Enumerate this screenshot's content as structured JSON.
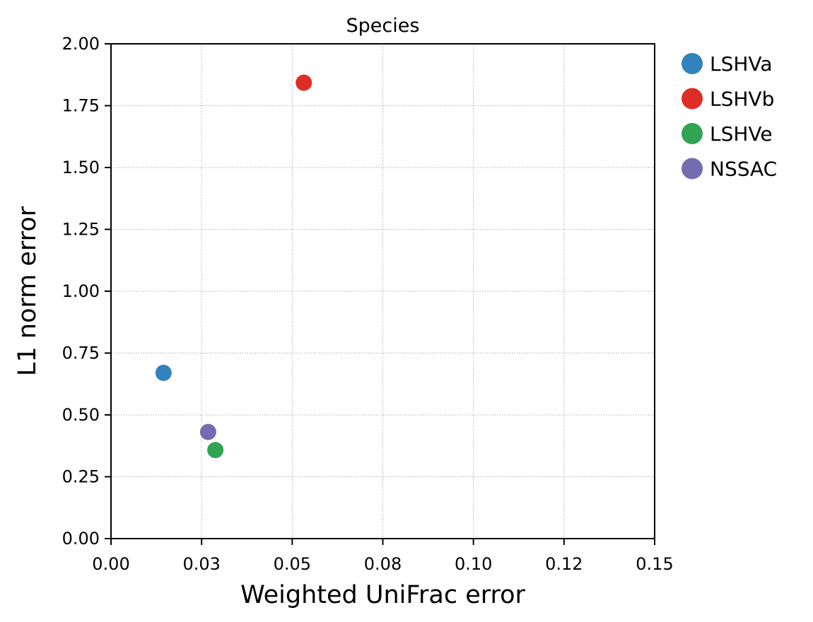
{
  "chart_data": {
    "type": "scatter",
    "title": "Species",
    "xlabel": "Weighted UniFrac error",
    "ylabel": "L1 norm error",
    "xlim": [
      0,
      0.15
    ],
    "ylim": [
      0,
      2
    ],
    "xticks": [
      0,
      0.025,
      0.05,
      0.075,
      0.1,
      0.125,
      0.15
    ],
    "xtick_labels": [
      "0.00",
      "0.03",
      "0.05",
      "0.08",
      "0.10",
      "0.12",
      "0.15"
    ],
    "yticks": [
      0,
      0.25,
      0.5,
      0.75,
      1.0,
      1.25,
      1.5,
      1.75,
      2.0
    ],
    "ytick_labels": [
      "0.00",
      "0.25",
      "0.50",
      "0.75",
      "1.00",
      "1.25",
      "1.50",
      "1.75",
      "2.00"
    ],
    "grid": true,
    "legend_position": "outside-right-top",
    "series": [
      {
        "name": "LSHVa",
        "color": "#3182bd",
        "x": [
          0.0145
        ],
        "y": [
          0.67
        ]
      },
      {
        "name": "LSHVb",
        "color": "#de2d26",
        "x": [
          0.0532
        ],
        "y": [
          1.843
        ]
      },
      {
        "name": "LSHVe",
        "color": "#31a354",
        "x": [
          0.0288
        ],
        "y": [
          0.358
        ]
      },
      {
        "name": "NSSAC",
        "color": "#756bb1",
        "x": [
          0.0268
        ],
        "y": [
          0.431
        ]
      }
    ]
  }
}
